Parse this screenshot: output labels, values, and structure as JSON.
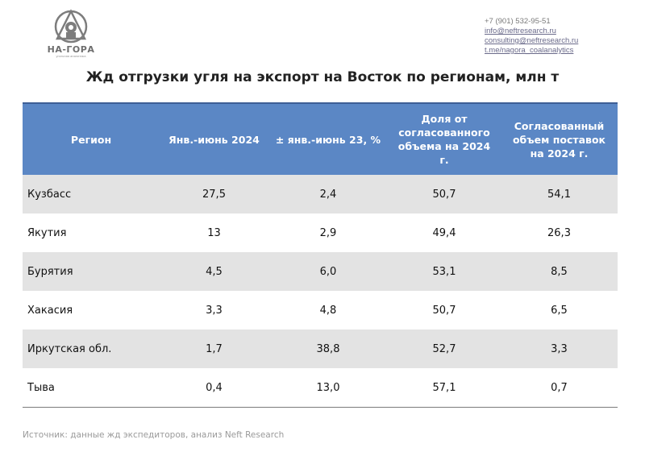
{
  "logo": {
    "name": "НА-ГОРА",
    "subtitle": "угольная аналитика",
    "emblem_icon": "mountain-emblem-icon"
  },
  "contacts": {
    "phone": "+7 (901) 532-95-51",
    "email_info": "info@neftresearch.ru",
    "email_consulting": "consulting@neftresearch.ru",
    "telegram": "t.me/nagora_coalanalytics"
  },
  "title": "Жд отгрузки угля на экспорт на Восток по регионам, млн т",
  "table": {
    "headers": [
      "Регион",
      "Янв.-июнь 2024",
      "± янв.-июнь 23, %",
      "Доля от согласованного объема на 2024 г.",
      "Согласованный объем поставок на 2024 г."
    ],
    "rows": [
      [
        "Кузбасс",
        "27,5",
        "2,4",
        "50,7",
        "54,1"
      ],
      [
        "Якутия",
        "13",
        "2,9",
        "49,4",
        "26,3"
      ],
      [
        "Бурятия",
        "4,5",
        "6,0",
        "53,1",
        "8,5"
      ],
      [
        "Хакасия",
        "3,3",
        "4,8",
        "50,7",
        "6,5"
      ],
      [
        "Иркутская обл.",
        "1,7",
        "38,8",
        "52,7",
        "3,3"
      ],
      [
        "Тыва",
        "0,4",
        "13,0",
        "57,1",
        "0,7"
      ]
    ]
  },
  "source": "Источник:  данные жд экспедиторов, анализ Neft Research",
  "colors": {
    "header_bg": "#5b87c5",
    "stripe_bg": "#e3e3e3"
  }
}
